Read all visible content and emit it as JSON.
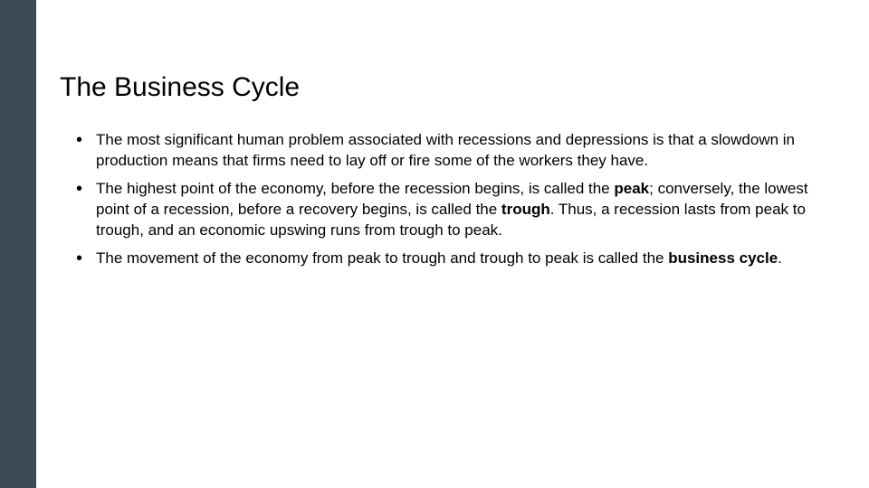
{
  "slide": {
    "title": "The Business Cycle",
    "sidebar_color": "#3a4a54",
    "background_color": "#ffffff",
    "title_fontsize": 30,
    "body_fontsize": 17,
    "bullets": [
      {
        "segments": [
          {
            "text": "The most significant human problem associated with recessions and depressions is that a slowdown in production means that firms need to lay off or fire some of the workers they have.",
            "bold": false
          }
        ]
      },
      {
        "segments": [
          {
            "text": "The highest point of the economy, before the recession begins, is called the ",
            "bold": false
          },
          {
            "text": "peak",
            "bold": true
          },
          {
            "text": "; conversely, the lowest point of a recession, before a recovery begins, is called the ",
            "bold": false
          },
          {
            "text": "trough",
            "bold": true
          },
          {
            "text": ". Thus, a recession lasts from peak to trough, and an economic upswing runs from trough to peak.",
            "bold": false
          }
        ]
      },
      {
        "segments": [
          {
            "text": "The movement of the economy from peak to trough and trough to peak is called the ",
            "bold": false
          },
          {
            "text": "business cycle",
            "bold": true
          },
          {
            "text": ".",
            "bold": false
          }
        ]
      }
    ]
  }
}
